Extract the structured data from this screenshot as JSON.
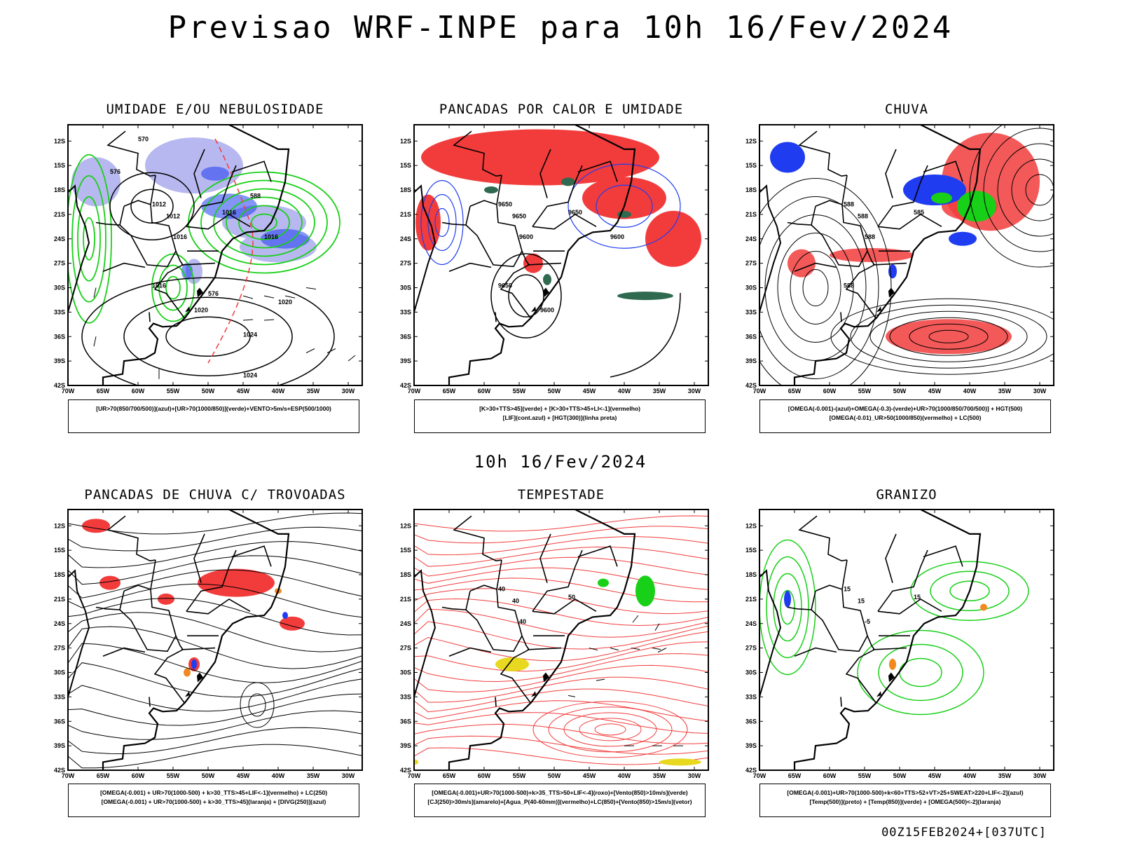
{
  "title": "Previsao WRF-INPE  para 10h 16/Fev/2024",
  "subtitle": "10h 16/Fev/2024",
  "footer": "00Z15FEB2024+[037UTC]",
  "axes": {
    "lat_labels": [
      "12S",
      "15S",
      "18S",
      "21S",
      "24S",
      "27S",
      "30S",
      "33S",
      "36S",
      "39S",
      "42S"
    ],
    "lon_labels": [
      "70W",
      "65W",
      "60W",
      "55W",
      "50W",
      "45W",
      "40W",
      "35W",
      "30W"
    ]
  },
  "colors": {
    "red": "#f23c3c",
    "blue": "#1f3cf0",
    "green": "#18d018",
    "lavender": "#b8b8f0",
    "orange": "#f08a20",
    "yellow": "#e8d820",
    "darkgreen": "#2f6a50"
  },
  "panels": [
    {
      "title": "UMIDADE E/OU NEBULOSIDADE",
      "legend": [
        "[UR>70(850/700/500)](azul)+[UR>70(1000/850)](verde)+VENTO>5m/s+ESP(500/1000)"
      ],
      "contour_labels": [
        "1012",
        "1012",
        "1016",
        "1016",
        "1016",
        "1016",
        "1020",
        "1020",
        "1024",
        "1024",
        "570",
        "576",
        "588",
        "576"
      ]
    },
    {
      "title": "PANCADAS POR CALOR E UMIDADE",
      "legend": [
        "[K>30+TTS>45](verde) + [K>30+TTS>45+LI<-1](vermelho)",
        "[LIF](cont.azul) + [HGT(300)](linha preta)"
      ],
      "contour_labels": [
        "9650",
        "9650",
        "9650",
        "9600",
        "9650",
        "9600",
        "9600"
      ]
    },
    {
      "title": "CHUVA",
      "legend": [
        "[OMEGA(-0.001)-(azul)+OMEGA(-0.3)-(verde)+UR>70(1000/850/700/500)] + HGT(500)",
        "[OMEGA(-0.01)_UR>50(1000/850)(vermelho) + LC(500)"
      ],
      "contour_labels": [
        "588",
        "588",
        "585",
        "588",
        "588"
      ]
    },
    {
      "title": "PANCADAS DE CHUVA C/ TROVOADAS",
      "legend": [
        "[OMEGA(-0.001) + UR>70(1000-500) + k>30_TTS>45+LIF<-1](vermelho) + LC(250)",
        "[OMEGA(-0.001) + UR>70(1000-500) + k>30_TTS>45](laranja) + [DIVG(250)](azul)"
      ],
      "contour_labels": []
    },
    {
      "title": "TEMPESTADE",
      "legend": [
        "[OMEGA(-0.001)+UR>70(1000-500)+k>35_TTS>50+LIF<-4](roxo)+[Vento(850)>10m/s](verde)",
        "[CJ(250)>30m/s](amarelo)+[Agua_P(40-60mm)](vermelho)+LC(850)+[Vento(850)>15m/s](vetor)"
      ],
      "contour_labels": [
        "40",
        "40",
        "50",
        "40"
      ]
    },
    {
      "title": "GRANIZO",
      "legend": [
        "[OMEGA(-0.001)+UR>70(1000-500)+k<60+TTS>52+VT>25+SWEAT>220+LIF<-2](azul)",
        "[Temp(500)](preto) + [Temp(850)](verde) + [OMEGA(500)<-2](laranja)"
      ],
      "contour_labels": [
        "15",
        "15",
        "15",
        "-5"
      ]
    }
  ]
}
